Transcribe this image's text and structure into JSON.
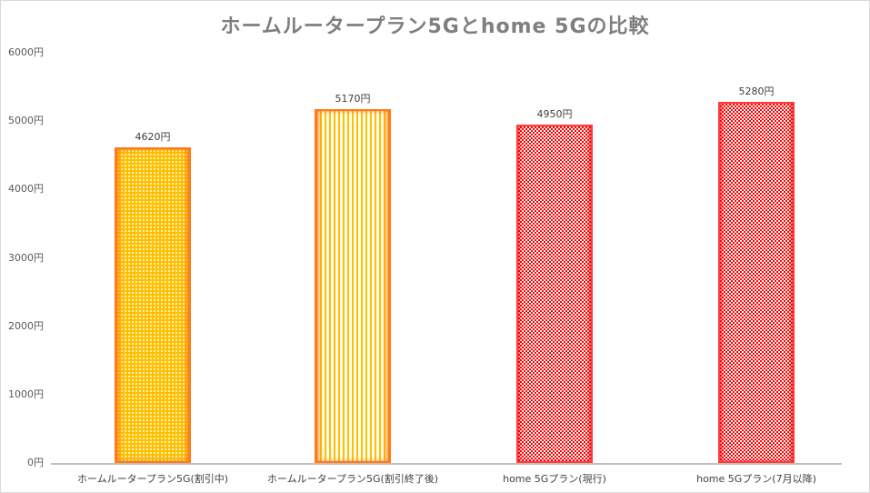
{
  "chart_data": {
    "type": "bar",
    "title": "ホームルータープラン5Gとhome 5Gの比較",
    "xlabel": "",
    "ylabel": "",
    "ylim": [
      0,
      6000
    ],
    "y_ticks": [
      "0円",
      "1000円",
      "2000円",
      "3000円",
      "4000円",
      "5000円",
      "6000円"
    ],
    "grid": false,
    "legend": null,
    "categories": [
      "ホームルータープラン5G(割引中)",
      "ホームルータープラン5G(割引終了後)",
      "home 5Gプラン(現行)",
      "home 5Gプラン(7月以降)"
    ],
    "values": [
      4620,
      5170,
      4950,
      5280
    ],
    "data_labels": [
      "4620円",
      "5170円",
      "4950円",
      "5280円"
    ],
    "bar_styles": [
      "dots",
      "dashes",
      "check",
      "check"
    ],
    "colors": {
      "orange_fill": "#ffc000",
      "orange_edge": "#ff6a00",
      "red_fill": "#ff0000",
      "axis": "#bfbfbf",
      "title": "#7f7f7f"
    }
  }
}
